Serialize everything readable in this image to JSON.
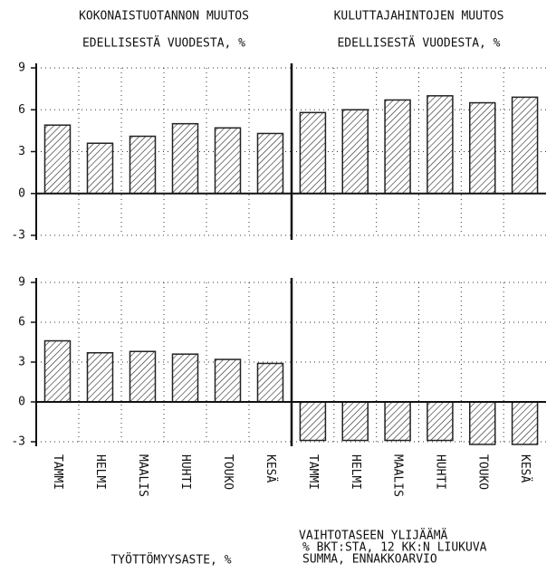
{
  "chart_data": [
    {
      "type": "bar",
      "title": [
        "KOKONAISTUOTANNON MUUTOS",
        "EDELLISESTÄ VUODESTA, %"
      ],
      "values": [
        4.9,
        3.6,
        4.1,
        5.0,
        4.7,
        4.3
      ],
      "color": "#222222",
      "ylim": [
        -3,
        9
      ],
      "yticks": [
        -3,
        0,
        3,
        6,
        9
      ],
      "grid": true
    },
    {
      "type": "bar",
      "title": [
        "KULUTTAJAHINTOJEN MUUTOS",
        "EDELLISESTÄ VUODESTA, %"
      ],
      "values": [
        5.8,
        6.0,
        6.7,
        7.0,
        6.5,
        6.9
      ],
      "color": "#222222",
      "ylim": [
        -3,
        9
      ],
      "yticks": [
        -3,
        0,
        3,
        6,
        9
      ],
      "grid": true
    },
    {
      "type": "bar",
      "title": [
        "TYÖTTÖMYYSASTE, %"
      ],
      "categories": [
        "TAMMI",
        "HELMI",
        "MAALIS",
        "HUHTI",
        "TOUKO",
        "KESÄ"
      ],
      "values": [
        4.6,
        3.7,
        3.8,
        3.6,
        3.2,
        2.9
      ],
      "color": "#222222",
      "ylim": [
        -3,
        9
      ],
      "yticks": [
        -3,
        0,
        3,
        6,
        9
      ],
      "grid": true
    },
    {
      "type": "bar",
      "title": [
        "VAIHTOTASEEN YLIJÄÄMÄ",
        "% BKT:STA, 12 KK:N LIUKUVA",
        "SUMMA, ENNAKKOARVIO"
      ],
      "categories": [
        "TAMMI",
        "HELMI",
        "MAALIS",
        "HUHTI",
        "TOUKO",
        "KESÄ"
      ],
      "values": [
        -2.9,
        -2.9,
        -2.9,
        -2.9,
        -3.2,
        -3.2
      ],
      "color": "#222222",
      "ylim": [
        -3,
        9
      ],
      "yticks": [
        -3,
        0,
        3,
        6,
        9
      ],
      "grid": true
    }
  ]
}
